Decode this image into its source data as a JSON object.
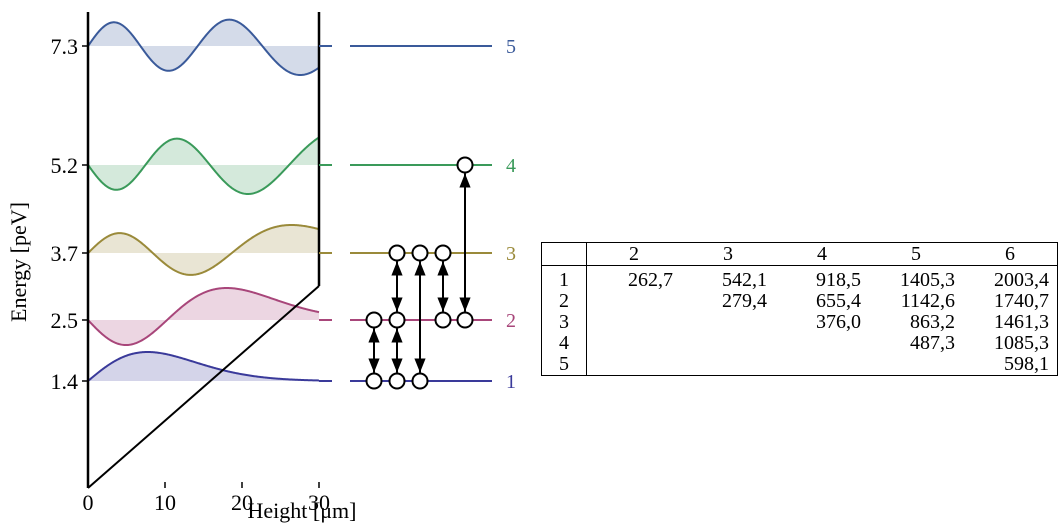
{
  "axes": {
    "x_label": "Height [μm]",
    "y_label": "Energy [peV]",
    "x_ticks": [
      "0",
      "10",
      "20",
      "30"
    ],
    "y_ticks": [
      "1.4",
      "2.5",
      "3.7",
      "5.2",
      "7.3"
    ]
  },
  "levels": [
    {
      "n": 1,
      "label": "1",
      "energy": 1.4,
      "color": "#3a3a9a"
    },
    {
      "n": 2,
      "label": "2",
      "energy": 2.5,
      "color": "#a8467a"
    },
    {
      "n": 3,
      "label": "3",
      "energy": 3.7,
      "color": "#9a8a3a"
    },
    {
      "n": 4,
      "label": "4",
      "energy": 5.2,
      "color": "#3a9a5a"
    },
    {
      "n": 5,
      "label": "5",
      "energy": 7.3,
      "color": "#3a5a9a"
    }
  ],
  "transitions": [
    {
      "from": 1,
      "to": 2
    },
    {
      "from": 1,
      "to": 2
    },
    {
      "from": 2,
      "to": 3
    },
    {
      "from": 1,
      "to": 3
    },
    {
      "from": 2,
      "to": 3
    },
    {
      "from": 2,
      "to": 4
    }
  ],
  "table": {
    "corner": "",
    "columns": [
      "2",
      "3",
      "4",
      "5",
      "6"
    ],
    "rows": [
      {
        "label": "1",
        "cells": [
          "262,7",
          "542,1",
          "918,5",
          "1405,3",
          "2003,4"
        ]
      },
      {
        "label": "2",
        "cells": [
          "",
          "279,4",
          "655,4",
          "1142,6",
          "1740,7"
        ]
      },
      {
        "label": "3",
        "cells": [
          "",
          "",
          "376,0",
          "863,2",
          "1461,3"
        ]
      },
      {
        "label": "4",
        "cells": [
          "",
          "",
          "",
          "487,3",
          "1085,3"
        ]
      },
      {
        "label": "5",
        "cells": [
          "",
          "",
          "",
          "",
          "598,1"
        ]
      }
    ]
  }
}
